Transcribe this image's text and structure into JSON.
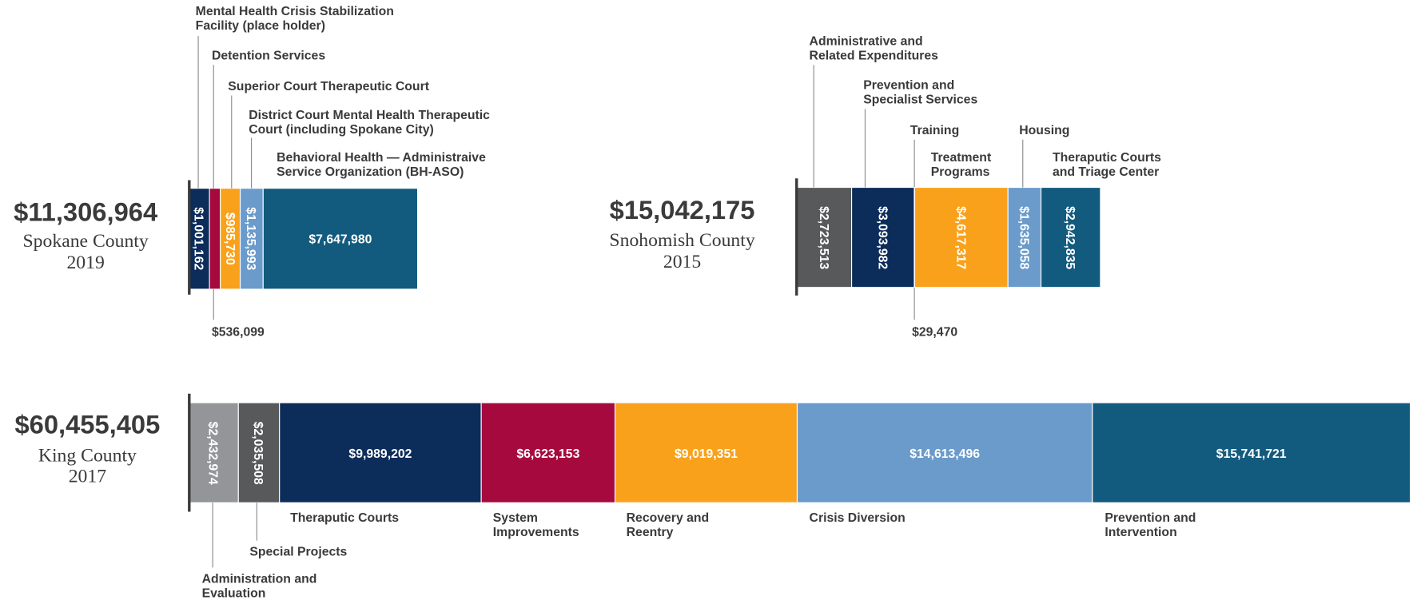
{
  "chart_data": [
    {
      "type": "bar",
      "orientation": "horizontal-stacked",
      "title": "$11,306,964",
      "subtitle": "Spokane County",
      "date": "2019",
      "categories": [
        "Mental Health Crisis Stabilization\nFacility (place holder)",
        "Detention Services",
        "Superior Court Therapeutic Court",
        "District Court Mental Health Therapeutic\nCourt (including Spokane City)",
        "Behavioral Health — Administraive\nService Organization (BH-ASO)"
      ],
      "values": [
        1001162,
        536099,
        985730,
        1135993,
        7647980
      ],
      "value_labels": [
        "$1,001,162",
        "$536,099",
        "$985,730",
        "$1,135,993",
        "$7,647,980"
      ],
      "colors": [
        "#0c2c5a",
        "#a6093d",
        "#f9a11b",
        "#6a9bcb",
        "#135b7e"
      ]
    },
    {
      "type": "bar",
      "orientation": "horizontal-stacked",
      "title": "$15,042,175",
      "subtitle": "Snohomish County",
      "date": "2015",
      "categories": [
        "Administrative and\nRelated Expenditures",
        "Prevention and\nSpecialist Services",
        "Training",
        "Treatment\nPrograms",
        "Housing",
        "Theraputic Courts\nand Triage Center"
      ],
      "values": [
        2723513,
        3093982,
        29470,
        4617317,
        1635058,
        2942835
      ],
      "value_labels": [
        "$2,723,513",
        "$3,093,982",
        "$29,470",
        "$4,617,317",
        "$1,635,058",
        "$2,942,835"
      ],
      "colors": [
        "#58595b",
        "#0c2c5a",
        "#a6093d",
        "#f9a11b",
        "#6a9bcb",
        "#135b7e"
      ]
    },
    {
      "type": "bar",
      "orientation": "horizontal-stacked",
      "title": "$60,455,405",
      "subtitle": "King County",
      "date": "2017",
      "categories": [
        "Administration and\nEvaluation",
        "Special Projects",
        "Theraputic Courts",
        "System\nImprovements",
        "Recovery and\nReentry",
        "Crisis Diversion",
        "Prevention and\nIntervention"
      ],
      "values": [
        2432974,
        2035508,
        9989202,
        6623153,
        9019351,
        14613496,
        15741721
      ],
      "value_labels": [
        "$2,432,974",
        "$2,035,508",
        "$9,989,202",
        "$6,623,153",
        "$9,019,351",
        "$14,613,496",
        "$15,741,721"
      ],
      "colors": [
        "#939598",
        "#58595b",
        "#0c2c5a",
        "#a6093d",
        "#f9a11b",
        "#6a9bcb",
        "#135b7e"
      ]
    }
  ]
}
